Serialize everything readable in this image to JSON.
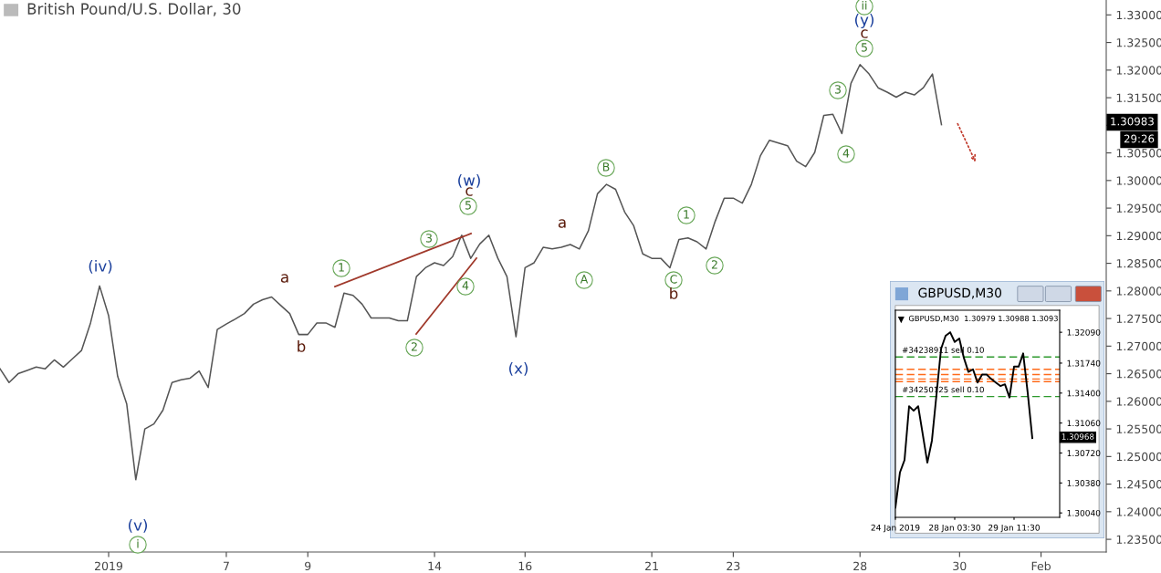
{
  "chart_data": [
    {
      "type": "line",
      "title": "British Pound/U.S. Dollar, 30",
      "categories": [
        null,
        null,
        null,
        null,
        null,
        null,
        null,
        null,
        null,
        null,
        null,
        null,
        "2019",
        null,
        null,
        null,
        null,
        null,
        null,
        null,
        null,
        null,
        null,
        null,
        null,
        "7",
        null,
        null,
        null,
        null,
        null,
        null,
        null,
        null,
        "9",
        null,
        null,
        null,
        null,
        null,
        null,
        null,
        null,
        null,
        null,
        null,
        null,
        null,
        "14",
        null,
        null,
        null,
        null,
        null,
        null,
        null,
        null,
        null,
        "16",
        null,
        null,
        null,
        null,
        null,
        null,
        null,
        null,
        null,
        null,
        null,
        null,
        null,
        "21",
        null,
        null,
        null,
        null,
        null,
        null,
        null,
        null,
        "23",
        null,
        null,
        null,
        null,
        null,
        null,
        null,
        null,
        null,
        null,
        null,
        null,
        null,
        "28",
        null,
        null,
        null,
        null,
        null,
        null,
        null,
        null,
        null,
        null,
        "30",
        null,
        null,
        null,
        null,
        null,
        null,
        null,
        null,
        "Feb",
        null,
        null,
        null,
        null,
        null,
        null,
        null
      ],
      "ylim": [
        1.2327,
        1.3327
      ],
      "yticks": [
        {
          "value": 1.235,
          "label": "1.23500"
        },
        {
          "value": 1.24,
          "label": "1.24000"
        },
        {
          "value": 1.245,
          "label": "1.24500"
        },
        {
          "value": 1.25,
          "label": "1.25000"
        },
        {
          "value": 1.255,
          "label": "1.25500"
        },
        {
          "value": 1.26,
          "label": "1.26000"
        },
        {
          "value": 1.265,
          "label": "1.26500"
        },
        {
          "value": 1.27,
          "label": "1.27000"
        },
        {
          "value": 1.275,
          "label": "1.27500"
        },
        {
          "value": 1.28,
          "label": "1.28000"
        },
        {
          "value": 1.285,
          "label": "1.28500"
        },
        {
          "value": 1.29,
          "label": "1.29000"
        },
        {
          "value": 1.295,
          "label": "1.29500"
        },
        {
          "value": 1.3,
          "label": "1.30000"
        },
        {
          "value": 1.305,
          "label": "1.30500"
        },
        {
          "value": 1.31,
          "label": null
        },
        {
          "value": 1.315,
          "label": "1.31500"
        },
        {
          "value": 1.32,
          "label": "1.32000"
        },
        {
          "value": 1.325,
          "label": "1.32500"
        },
        {
          "value": 1.33,
          "label": "1.33000"
        }
      ],
      "series": [
        {
          "color": "#555555",
          "values": [
            1.2659,
            1.2634,
            1.265,
            1.2656,
            1.2662,
            1.2659,
            1.2675,
            1.2662,
            1.2677,
            1.2692,
            1.2742,
            1.2809,
            1.2755,
            1.2645,
            1.2595,
            1.2458,
            1.255,
            1.2559,
            1.2584,
            1.2634,
            1.2639,
            1.2642,
            1.2655,
            1.2625,
            1.273,
            1.274,
            1.2749,
            1.2759,
            1.2776,
            1.2784,
            1.2789,
            1.2774,
            1.2759,
            1.2721,
            1.2721,
            1.2742,
            1.2742,
            1.2734,
            1.2796,
            1.2792,
            1.2776,
            1.2751,
            1.2751,
            1.2751,
            1.2746,
            1.2746,
            1.2826,
            1.2842,
            1.2851,
            1.2846,
            1.2862,
            1.2901,
            1.2859,
            1.2885,
            1.2901,
            1.2859,
            1.2826,
            1.2717,
            1.2842,
            1.2851,
            1.2879,
            1.2876,
            1.2879,
            1.2884,
            1.2876,
            1.2909,
            1.2976,
            1.2993,
            1.2984,
            1.2943,
            1.2918,
            1.2867,
            1.2859,
            1.2859,
            1.2842,
            1.2893,
            1.2896,
            1.2889,
            1.2876,
            1.2926,
            1.2968,
            1.2968,
            1.2959,
            1.2993,
            1.3045,
            1.3073,
            1.3068,
            1.3063,
            1.3035,
            1.3025,
            1.3051,
            1.3118,
            1.312,
            1.3085,
            1.3176,
            1.321,
            1.3193,
            1.3168,
            1.316,
            1.3151,
            1.316,
            1.3155,
            1.3168,
            1.3193,
            1.3101,
            null,
            null,
            null,
            null,
            null,
            null,
            null,
            null,
            null,
            null,
            null,
            null,
            null,
            null,
            null,
            null,
            null,
            null
          ]
        }
      ],
      "annotations": [
        "(iv)",
        "(v)",
        "i",
        "a",
        "b",
        "1",
        "2",
        "3",
        "4",
        "5",
        "c",
        "(w)",
        "(x)",
        "a",
        "A",
        "B",
        "C",
        "b",
        "1",
        "2",
        "3",
        "4",
        "5",
        "c",
        "(y)",
        "ii",
        "1.30983",
        "29:26"
      ]
    },
    {
      "type": "line",
      "title": "GBPUSD,M30",
      "subtitle": "GBPUSD,M30  1.30979 1.30988 1.3093",
      "categories": [
        "24 Jan 2019",
        null,
        null,
        null,
        null,
        null,
        null,
        null,
        null,
        null,
        null,
        null,
        null,
        "28 Jan 03:30",
        null,
        null,
        null,
        null,
        null,
        null,
        null,
        null,
        null,
        null,
        null,
        null,
        "29 Jan 11:30",
        null,
        null,
        null,
        null,
        null,
        null,
        null,
        null,
        null,
        null
      ],
      "ylim": [
        1.2999,
        1.3234
      ],
      "yticks": [
        {
          "value": 1.3004,
          "label": "1.30040"
        },
        {
          "value": 1.3038,
          "label": "1.30380"
        },
        {
          "value": 1.3072,
          "label": "1.30720"
        },
        {
          "value": 1.3106,
          "label": "1.31060"
        },
        {
          "value": 1.314,
          "label": "1.31400"
        },
        {
          "value": 1.3174,
          "label": "1.31740"
        },
        {
          "value": 1.3209,
          "label": "1.32090"
        }
      ],
      "series": [
        {
          "color": "#000000",
          "values": [
            1.301,
            1.305,
            1.3064,
            1.3125,
            1.312,
            1.3125,
            1.3093,
            1.3061,
            1.3086,
            1.3138,
            1.319,
            1.3205,
            1.3209,
            1.3198,
            1.3202,
            1.318,
            1.3164,
            1.3167,
            1.3152,
            1.3161,
            1.3161,
            1.3156,
            1.3152,
            1.3148,
            1.315,
            1.3135,
            1.317,
            1.317,
            1.3185,
            1.314,
            1.3089,
            null,
            null,
            null,
            null,
            null,
            null
          ]
        }
      ],
      "ref_lines": [
        {
          "axis": "y",
          "value": 1.3181,
          "label": "#34238911 sell 0.10",
          "color": "#2e9a2e",
          "line_style": "dashed"
        },
        {
          "axis": "y",
          "value": 1.3136,
          "label": "#34250125 sell 0.10",
          "color": "#2e9a2e",
          "line_style": "dashed"
        },
        {
          "axis": "y",
          "value": 1.3167,
          "color": "#ff6a1a",
          "line_style": "dashed"
        },
        {
          "axis": "y",
          "value": 1.3161,
          "color": "#ff6a1a",
          "line_style": "dashed"
        },
        {
          "axis": "y",
          "value": 1.3156,
          "color": "#ff6a1a",
          "line_style": "dashed"
        },
        {
          "axis": "y",
          "value": 1.3153,
          "color": "#ff6a1a",
          "line_style": "dashed"
        }
      ],
      "annotations": [
        "1.30968"
      ]
    }
  ]
}
